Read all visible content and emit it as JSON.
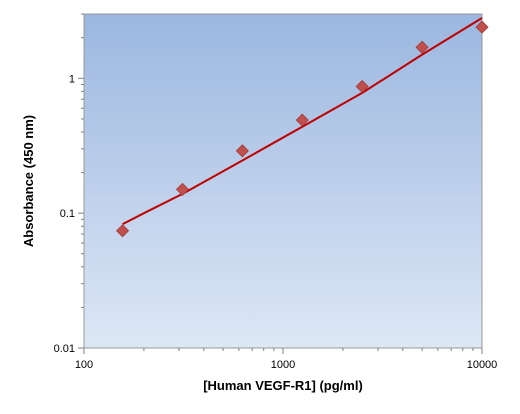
{
  "chart_data": {
    "type": "scatter",
    "title": "",
    "xlabel": "[Human VEGF-R1] (pg/ml)",
    "ylabel": "Absorbance (450 nm)",
    "x_scale": "log",
    "y_scale": "log",
    "xlim": [
      100,
      10000
    ],
    "ylim": [
      0.01,
      3
    ],
    "x_ticks": [
      100,
      1000,
      10000
    ],
    "x_tick_labels": [
      "100",
      "1000",
      "10000"
    ],
    "y_ticks": [
      0.01,
      0.1,
      1
    ],
    "y_tick_labels": [
      "0.01",
      "0.1",
      "1"
    ],
    "grid": false,
    "series": [
      {
        "type": "scatter",
        "marker": "diamond",
        "color": "#c0504d",
        "x": [
          156.25,
          312.5,
          625,
          1250,
          2500,
          5000,
          10000
        ],
        "y": [
          0.074,
          0.15,
          0.29,
          0.49,
          0.87,
          1.7,
          2.4
        ]
      },
      {
        "type": "line",
        "color": "#c00000",
        "x": [
          156.25,
          200,
          312.5,
          625,
          1250,
          2500,
          5000,
          10000
        ],
        "y": [
          0.083,
          0.1,
          0.139,
          0.246,
          0.438,
          0.78,
          1.5,
          2.8
        ]
      }
    ],
    "plot_background": [
      "#9bb7e0",
      "#dde7f5"
    ]
  }
}
